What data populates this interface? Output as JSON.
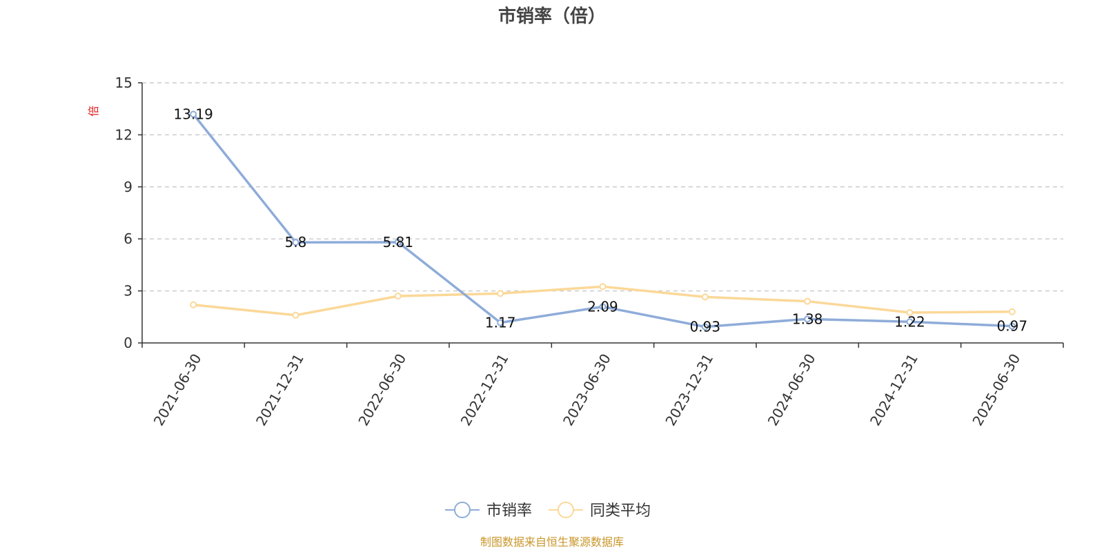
{
  "chart_data": {
    "type": "line",
    "title": "市销率（倍）",
    "ylabel": "倍",
    "xlabel": "",
    "categories": [
      "2021-06-30",
      "2021-12-31",
      "2022-06-30",
      "2022-12-31",
      "2023-06-30",
      "2023-12-31",
      "2024-06-30",
      "2024-12-31",
      "2025-06-30"
    ],
    "ylim": [
      0,
      15
    ],
    "yticks": [
      0,
      3,
      6,
      9,
      12,
      15
    ],
    "grid": true,
    "legend_position": "bottom",
    "series": [
      {
        "name": "市销率",
        "color": "#8eacd9",
        "values": [
          13.19,
          5.8,
          5.81,
          1.17,
          2.09,
          0.93,
          1.38,
          1.22,
          0.97
        ],
        "labels": [
          "13.19",
          "5.8",
          "5.81",
          "1.17",
          "2.09",
          "0.93",
          "1.38",
          "1.22",
          "0.97"
        ]
      },
      {
        "name": "同类平均",
        "color": "#fbd898",
        "values": [
          2.2,
          1.6,
          2.7,
          2.85,
          3.25,
          2.65,
          2.4,
          1.75,
          1.8
        ]
      }
    ]
  },
  "source": "制图数据来自恒生聚源数据库"
}
